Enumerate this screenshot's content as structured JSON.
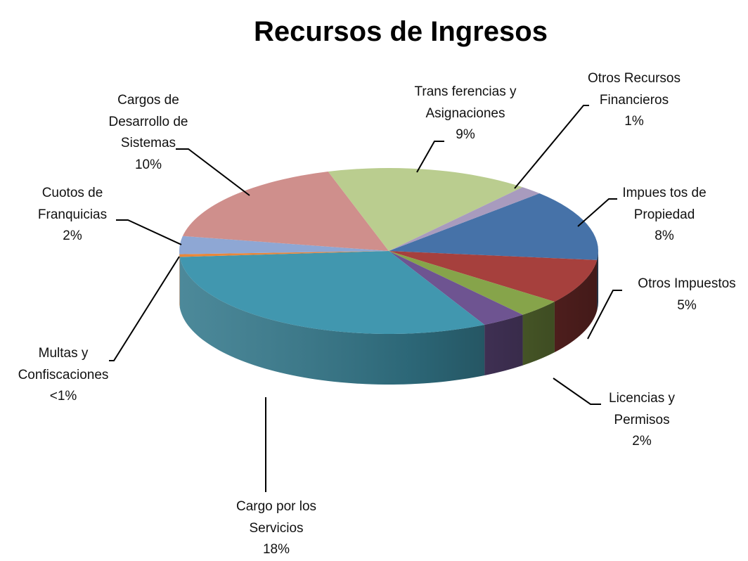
{
  "chart_data": {
    "type": "pie3d",
    "title": "Recursos de Ingresos",
    "categories": [
      "Impues tos de Propiedad",
      "Otros Impuestos",
      "Licencias y Permisos",
      null,
      "Cargo por los Servicios",
      "Multas y Confiscaciones",
      "Cuotos de Franquicias",
      "Cargos de Desarrollo de Sistemas",
      "Trans ferencias y Asignaciones",
      "Otros Recursos Financieros"
    ],
    "values": [
      8,
      5,
      2,
      2,
      18,
      0.3,
      2,
      10,
      9,
      1
    ],
    "value_labels": [
      "8%",
      "5%",
      "2%",
      null,
      "18%",
      "<1%",
      "2%",
      "10%",
      "9%",
      "1%"
    ],
    "colors": [
      "#4672A8",
      "#A6403D",
      "#86A44A",
      "#6E5491",
      "#4197AF",
      "#E8873A",
      "#8EA7D4",
      "#CF8F8C",
      "#BACD8F",
      "#A89BBE"
    ]
  }
}
